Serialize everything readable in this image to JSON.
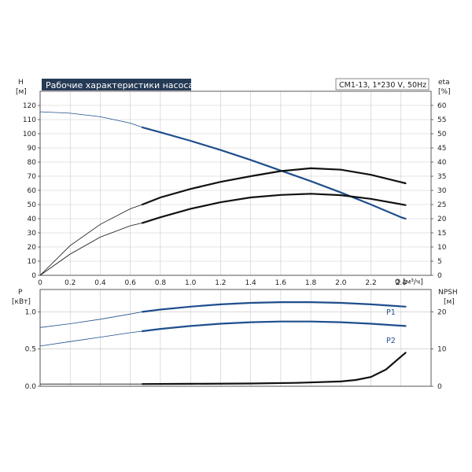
{
  "chart_data": [
    {
      "type": "line",
      "title": "Рабочие характеристики насоса",
      "model_box": "CM1-13, 1*230 V, 50Hz",
      "x_axis": {
        "unit_label": "Q [м³/ч]",
        "xlim": [
          0,
          2.6
        ],
        "ticks": [
          0,
          0.2,
          0.4,
          0.6,
          0.8,
          1.0,
          1.2,
          1.4,
          1.6,
          1.8,
          2.0,
          2.2,
          2.4
        ],
        "tick_labels": [
          "0",
          "0.2",
          "0.4",
          "0.6",
          "0.8",
          "1.0",
          "1.2",
          "1.4",
          "1.6",
          "1.8",
          "2.0",
          "2.2",
          "2.4"
        ]
      },
      "y_left": {
        "label": "H",
        "unit": "[м]",
        "ylim": [
          0,
          130
        ],
        "ticks": [
          0,
          10,
          20,
          30,
          40,
          50,
          60,
          70,
          80,
          90,
          100,
          110,
          120
        ],
        "tick_labels": [
          "0",
          "10",
          "20",
          "30",
          "40",
          "50",
          "60",
          "70",
          "80",
          "90",
          "100",
          "110",
          "120"
        ]
      },
      "y_right": {
        "label": "eta",
        "unit": "[%]",
        "ylim": [
          0,
          65
        ],
        "ticks": [
          0,
          5,
          10,
          15,
          20,
          25,
          30,
          35,
          40,
          45,
          50,
          55,
          60
        ],
        "tick_labels": [
          "0",
          "5",
          "10",
          "15",
          "20",
          "25",
          "30",
          "35",
          "40",
          "45",
          "50",
          "55",
          "60"
        ]
      },
      "grid": true,
      "series": [
        {
          "axis": "left",
          "color": "#1f4e8c",
          "points": [
            [
              0,
              115.5
            ],
            [
              0.2,
              114.5
            ],
            [
              0.4,
              112
            ],
            [
              0.6,
              107.5
            ],
            [
              0.68,
              104.5
            ],
            [
              0.8,
              101
            ],
            [
              1.0,
              95
            ],
            [
              1.2,
              88.5
            ],
            [
              1.4,
              81.5
            ],
            [
              1.6,
              74
            ],
            [
              1.8,
              66.5
            ],
            [
              2.0,
              58.5
            ],
            [
              2.2,
              50
            ],
            [
              2.4,
              41
            ],
            [
              2.43,
              40
            ]
          ],
          "operating_range": [
            0.68,
            2.43
          ]
        },
        {
          "axis": "right",
          "color": "#111111",
          "points": [
            [
              0,
              0
            ],
            [
              0.2,
              10.5
            ],
            [
              0.4,
              18
            ],
            [
              0.6,
              23.5
            ],
            [
              0.68,
              25
            ],
            [
              0.8,
              27.5
            ],
            [
              1.0,
              30.5
            ],
            [
              1.2,
              33
            ],
            [
              1.4,
              35
            ],
            [
              1.6,
              36.8
            ],
            [
              1.8,
              37.8
            ],
            [
              2.0,
              37.3
            ],
            [
              2.2,
              35.5
            ],
            [
              2.43,
              32.5
            ]
          ],
          "operating_range": [
            0.68,
            2.43
          ]
        },
        {
          "axis": "right",
          "color": "#111111",
          "points": [
            [
              0,
              0
            ],
            [
              0.2,
              7.5
            ],
            [
              0.4,
              13.5
            ],
            [
              0.6,
              17.5
            ],
            [
              0.68,
              18.5
            ],
            [
              0.8,
              20.5
            ],
            [
              1.0,
              23.5
            ],
            [
              1.2,
              25.8
            ],
            [
              1.4,
              27.5
            ],
            [
              1.6,
              28.4
            ],
            [
              1.8,
              28.8
            ],
            [
              2.0,
              28.3
            ],
            [
              2.2,
              27
            ],
            [
              2.43,
              24.8
            ]
          ],
          "operating_range": [
            0.68,
            2.43
          ]
        }
      ]
    },
    {
      "type": "line",
      "x_axis": {
        "xlim": [
          0,
          2.6
        ],
        "ticks": [
          0,
          0.2,
          0.4,
          0.6,
          0.8,
          1.0,
          1.2,
          1.4,
          1.6,
          1.8,
          2.0,
          2.2,
          2.4
        ]
      },
      "y_left": {
        "label": "P",
        "unit": "[кВт]",
        "ylim": [
          0,
          1.3
        ],
        "ticks": [
          0,
          0.5,
          1.0
        ],
        "tick_labels": [
          "0.0",
          "0.5",
          "1.0"
        ]
      },
      "y_right": {
        "label": "NPSH",
        "unit": "[м]",
        "ylim": [
          0,
          26
        ],
        "ticks": [
          0,
          10,
          20
        ],
        "tick_labels": [
          "0",
          "10",
          "20"
        ]
      },
      "grid": true,
      "series": [
        {
          "name": "P1",
          "axis": "left",
          "color": "#1f4e8c",
          "points": [
            [
              0,
              0.79
            ],
            [
              0.2,
              0.84
            ],
            [
              0.4,
              0.9
            ],
            [
              0.6,
              0.97
            ],
            [
              0.68,
              1.0
            ],
            [
              0.8,
              1.03
            ],
            [
              1.0,
              1.07
            ],
            [
              1.2,
              1.1
            ],
            [
              1.4,
              1.12
            ],
            [
              1.6,
              1.13
            ],
            [
              1.8,
              1.13
            ],
            [
              2.0,
              1.12
            ],
            [
              2.2,
              1.1
            ],
            [
              2.43,
              1.07
            ]
          ],
          "operating_range": [
            0.68,
            2.43
          ]
        },
        {
          "name": "P2",
          "axis": "left",
          "color": "#1f4e8c",
          "points": [
            [
              0,
              0.54
            ],
            [
              0.2,
              0.6
            ],
            [
              0.4,
              0.66
            ],
            [
              0.6,
              0.72
            ],
            [
              0.68,
              0.74
            ],
            [
              0.8,
              0.77
            ],
            [
              1.0,
              0.81
            ],
            [
              1.2,
              0.84
            ],
            [
              1.4,
              0.86
            ],
            [
              1.6,
              0.87
            ],
            [
              1.8,
              0.87
            ],
            [
              2.0,
              0.86
            ],
            [
              2.2,
              0.84
            ],
            [
              2.43,
              0.81
            ]
          ],
          "operating_range": [
            0.68,
            2.43
          ]
        },
        {
          "axis": "right",
          "color": "#111111",
          "points": [
            [
              0,
              0.6
            ],
            [
              0.68,
              0.6
            ],
            [
              1.0,
              0.65
            ],
            [
              1.4,
              0.75
            ],
            [
              1.7,
              0.9
            ],
            [
              2.0,
              1.3
            ],
            [
              2.1,
              1.7
            ],
            [
              2.2,
              2.5
            ],
            [
              2.3,
              4.5
            ],
            [
              2.43,
              9.0
            ]
          ],
          "operating_range": [
            0.68,
            2.43
          ]
        }
      ]
    }
  ]
}
